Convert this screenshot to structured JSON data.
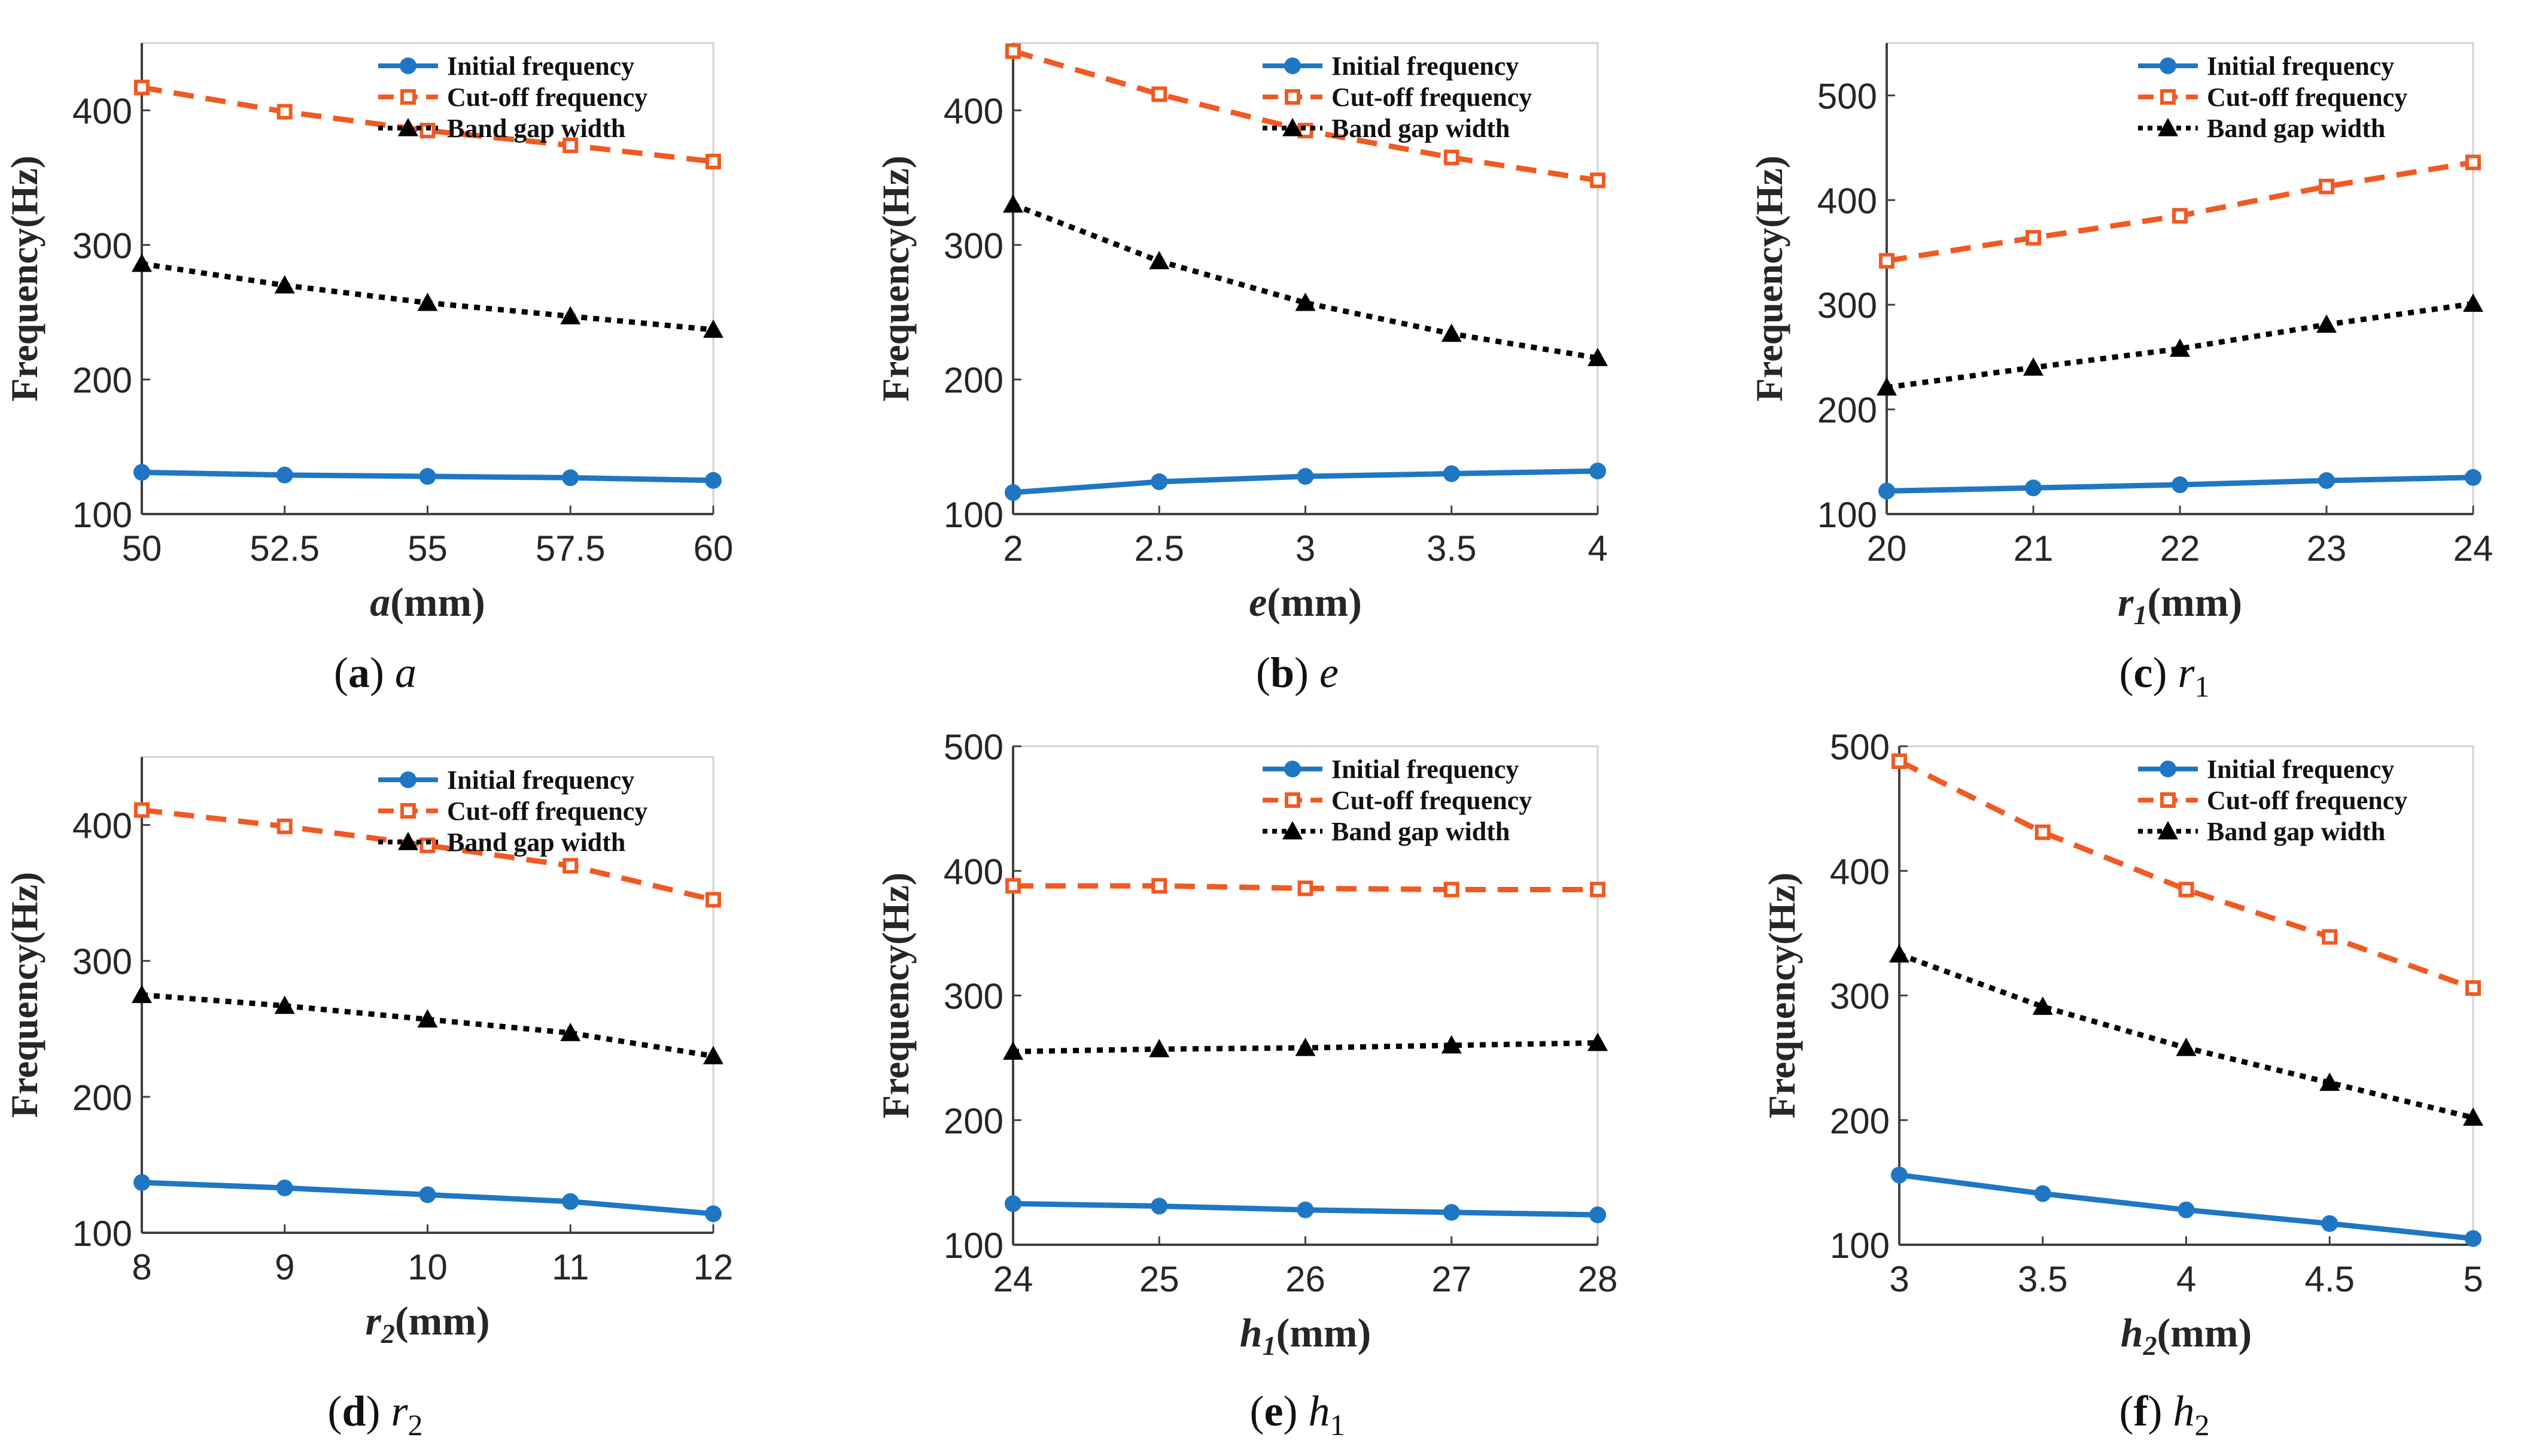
{
  "colors": {
    "initial": "#1f77c4",
    "cutoff": "#f05a22",
    "bandgap": "#000000",
    "axis": "#404040",
    "grid": "#e6e6e6"
  },
  "legend_labels": [
    "Initial frequency",
    "Cut-off frequency",
    "Band gap width"
  ],
  "y_label": "Frequency(Hz)",
  "chart_data": [
    {
      "type": "line",
      "caption_letter": "(a)",
      "caption_var": "a",
      "caption_sub": "",
      "xlabel_var": "a",
      "xlabel_sub": "",
      "xlabel_unit": "(mm)",
      "x": [
        50,
        52.5,
        55,
        57.5,
        60
      ],
      "xticks": [
        "50",
        "52.5",
        "55",
        "57.5",
        "60"
      ],
      "xlim": [
        50,
        60
      ],
      "ylim": [
        100,
        450
      ],
      "yticks": [
        100,
        200,
        300,
        400
      ],
      "legend_position": "top-right",
      "series": [
        {
          "name": "Initial frequency",
          "values": [
            131,
            129,
            128,
            127,
            125
          ]
        },
        {
          "name": "Cut-off frequency",
          "values": [
            417,
            399,
            385,
            374,
            362
          ]
        },
        {
          "name": "Band gap width",
          "values": [
            286,
            270,
            257,
            247,
            237
          ]
        }
      ]
    },
    {
      "type": "line",
      "caption_letter": "(b)",
      "caption_var": "e",
      "caption_sub": "",
      "xlabel_var": "e",
      "xlabel_sub": "",
      "xlabel_unit": "(mm)",
      "x": [
        2,
        2.5,
        3,
        3.5,
        4
      ],
      "xticks": [
        "2",
        "2.5",
        "3",
        "3.5",
        "4"
      ],
      "xlim": [
        2,
        4
      ],
      "ylim": [
        100,
        450
      ],
      "yticks": [
        100,
        200,
        300,
        400
      ],
      "legend_position": "top-right",
      "series": [
        {
          "name": "Initial frequency",
          "values": [
            116,
            124,
            128,
            130,
            132
          ]
        },
        {
          "name": "Cut-off frequency",
          "values": [
            444,
            412,
            385,
            365,
            348
          ]
        },
        {
          "name": "Band gap width",
          "values": [
            330,
            288,
            257,
            234,
            216
          ]
        }
      ]
    },
    {
      "type": "line",
      "caption_letter": "(c)",
      "caption_var": "r",
      "caption_sub": "1",
      "xlabel_var": "r",
      "xlabel_sub": "1",
      "xlabel_unit": "(mm)",
      "x": [
        20,
        21,
        22,
        23,
        24
      ],
      "xticks": [
        "20",
        "21",
        "22",
        "23",
        "24"
      ],
      "xlim": [
        20,
        24
      ],
      "ylim": [
        100,
        550
      ],
      "yticks": [
        100,
        200,
        300,
        400,
        500
      ],
      "legend_position": "top-right",
      "series": [
        {
          "name": "Initial frequency",
          "values": [
            122,
            125,
            128,
            132,
            135
          ]
        },
        {
          "name": "Cut-off frequency",
          "values": [
            342,
            364,
            385,
            413,
            436
          ]
        },
        {
          "name": "Band gap width",
          "values": [
            221,
            240,
            258,
            281,
            301
          ]
        }
      ]
    },
    {
      "type": "line",
      "caption_letter": "(d)",
      "caption_var": "r",
      "caption_sub": "2",
      "xlabel_var": "r",
      "xlabel_sub": "2",
      "xlabel_unit": "(mm)",
      "x": [
        8,
        9,
        10,
        11,
        12
      ],
      "xticks": [
        "8",
        "9",
        "10",
        "11",
        "12"
      ],
      "xlim": [
        8,
        12
      ],
      "ylim": [
        100,
        450
      ],
      "yticks": [
        100,
        200,
        300,
        400
      ],
      "legend_position": "top-right",
      "series": [
        {
          "name": "Initial frequency",
          "values": [
            137,
            133,
            128,
            123,
            114
          ]
        },
        {
          "name": "Cut-off frequency",
          "values": [
            411,
            399,
            385,
            370,
            345
          ]
        },
        {
          "name": "Band gap width",
          "values": [
            275,
            267,
            257,
            247,
            230
          ]
        }
      ]
    },
    {
      "type": "line",
      "caption_letter": "(e)",
      "caption_var": "h",
      "caption_sub": "1",
      "xlabel_var": "h",
      "xlabel_sub": "1",
      "xlabel_unit": "(mm)",
      "x": [
        24,
        25,
        26,
        27,
        28
      ],
      "xticks": [
        "24",
        "25",
        "26",
        "27",
        "28"
      ],
      "xlim": [
        24,
        28
      ],
      "ylim": [
        100,
        500
      ],
      "yticks": [
        100,
        200,
        300,
        400,
        500
      ],
      "legend_position": "top-right",
      "series": [
        {
          "name": "Initial frequency",
          "values": [
            133,
            131,
            128,
            126,
            124
          ]
        },
        {
          "name": "Cut-off frequency",
          "values": [
            388,
            388,
            386,
            385,
            385
          ]
        },
        {
          "name": "Band gap width",
          "values": [
            255,
            257,
            258,
            260,
            262
          ]
        }
      ]
    },
    {
      "type": "line",
      "caption_letter": "(f)",
      "caption_var": "h",
      "caption_sub": "2",
      "xlabel_var": "h",
      "xlabel_sub": "2",
      "xlabel_unit": "(mm)",
      "x": [
        3,
        3.5,
        4,
        4.5,
        5
      ],
      "xticks": [
        "3",
        "3.5",
        "4",
        "4.5",
        "5"
      ],
      "xlim": [
        3,
        5
      ],
      "ylim": [
        100,
        500
      ],
      "yticks": [
        100,
        200,
        300,
        400,
        500
      ],
      "legend_position": "top-right",
      "series": [
        {
          "name": "Initial frequency",
          "values": [
            156,
            141,
            128,
            117,
            105
          ]
        },
        {
          "name": "Cut-off frequency",
          "values": [
            488,
            431,
            385,
            347,
            306
          ]
        },
        {
          "name": "Band gap width",
          "values": [
            333,
            291,
            258,
            230,
            202
          ]
        }
      ]
    }
  ]
}
